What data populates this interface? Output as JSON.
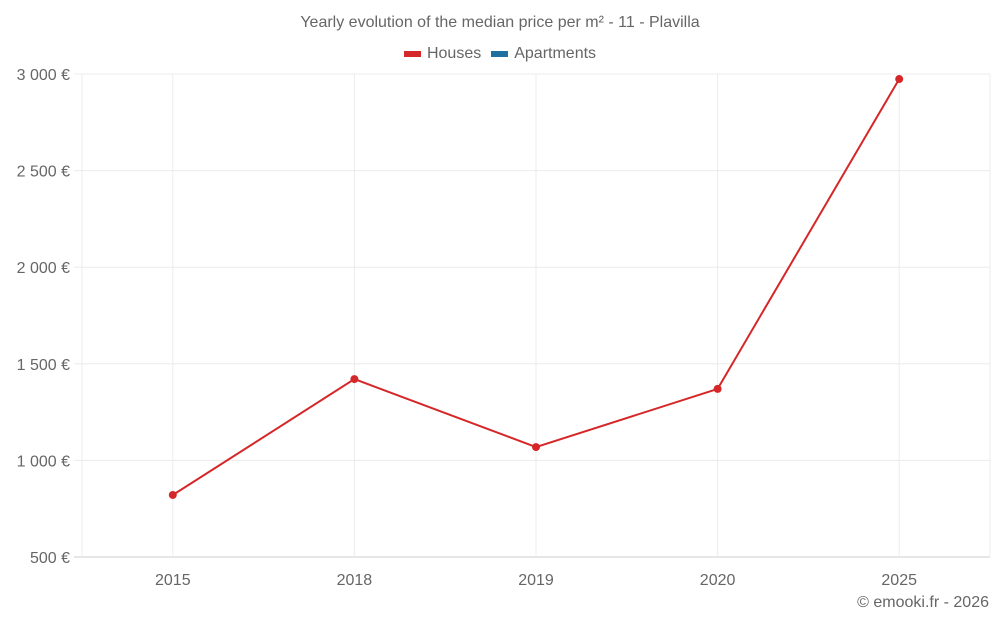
{
  "title": "Yearly evolution of the median price per m² - 11 - Plavilla",
  "legend": [
    {
      "label": "Houses",
      "color": "#d62728"
    },
    {
      "label": "Apartments",
      "color": "#1f6fa0"
    }
  ],
  "credit": "© emooki.fr - 2026",
  "chart_data": {
    "type": "line",
    "title": "Yearly evolution of the median price per m² - 11 - Plavilla",
    "xlabel": "",
    "ylabel": "",
    "categories": [
      "2015",
      "2018",
      "2019",
      "2020",
      "2025"
    ],
    "series": [
      {
        "name": "Houses",
        "color": "#d62728",
        "values": [
          821,
          1421,
          1069,
          1370,
          2974
        ]
      },
      {
        "name": "Apartments",
        "color": "#1f6fa0",
        "values": []
      }
    ],
    "ylim": [
      500,
      3000
    ],
    "yticks": [
      500,
      1000,
      1500,
      2000,
      2500,
      3000
    ],
    "ytick_labels": [
      "500 €",
      "1 000 €",
      "1 500 €",
      "2 000 €",
      "2 500 €",
      "3 000 €"
    ],
    "grid": true,
    "legend_position": "top"
  }
}
